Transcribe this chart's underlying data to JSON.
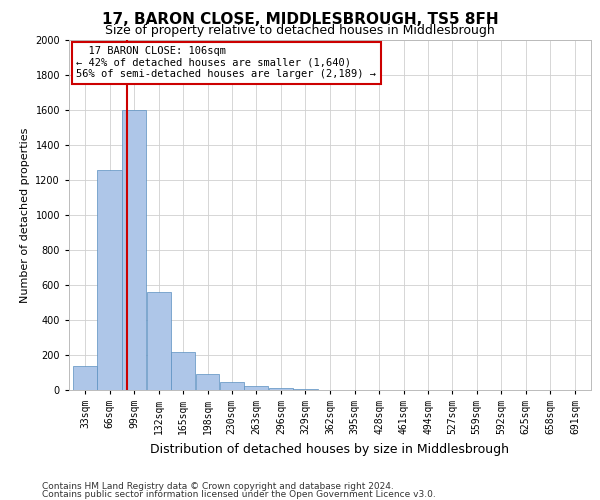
{
  "title": "17, BARON CLOSE, MIDDLESBROUGH, TS5 8FH",
  "subtitle": "Size of property relative to detached houses in Middlesbrough",
  "xlabel": "Distribution of detached houses by size in Middlesbrough",
  "ylabel": "Number of detached properties",
  "footnote1": "Contains HM Land Registry data © Crown copyright and database right 2024.",
  "footnote2": "Contains public sector information licensed under the Open Government Licence v3.0.",
  "annotation_line1": "17 BARON CLOSE: 106sqm",
  "annotation_line2": "← 42% of detached houses are smaller (1,640)",
  "annotation_line3": "56% of semi-detached houses are larger (2,189) →",
  "property_size": 106,
  "bar_color": "#aec6e8",
  "bar_edge_color": "#5a8fc0",
  "vline_color": "#cc0000",
  "annotation_box_color": "#cc0000",
  "categories": [
    "33sqm",
    "66sqm",
    "99sqm",
    "132sqm",
    "165sqm",
    "198sqm",
    "230sqm",
    "263sqm",
    "296sqm",
    "329sqm",
    "362sqm",
    "395sqm",
    "428sqm",
    "461sqm",
    "494sqm",
    "527sqm",
    "559sqm",
    "592sqm",
    "625sqm",
    "658sqm",
    "691sqm"
  ],
  "values": [
    140,
    1260,
    1600,
    560,
    220,
    90,
    45,
    25,
    10,
    5,
    0,
    0,
    0,
    0,
    0,
    0,
    0,
    0,
    0,
    0,
    0
  ],
  "bin_edges": [
    33,
    66,
    99,
    132,
    165,
    198,
    230,
    263,
    296,
    329,
    362,
    395,
    428,
    461,
    494,
    527,
    559,
    592,
    625,
    658,
    691,
    724
  ],
  "ylim": [
    0,
    2000
  ],
  "yticks": [
    0,
    200,
    400,
    600,
    800,
    1000,
    1200,
    1400,
    1600,
    1800,
    2000
  ],
  "grid_color": "#d0d0d0",
  "background_color": "#ffffff",
  "title_fontsize": 11,
  "subtitle_fontsize": 9,
  "xlabel_fontsize": 9,
  "ylabel_fontsize": 8,
  "tick_fontsize": 7,
  "annotation_fontsize": 7.5,
  "footnote_fontsize": 6.5
}
